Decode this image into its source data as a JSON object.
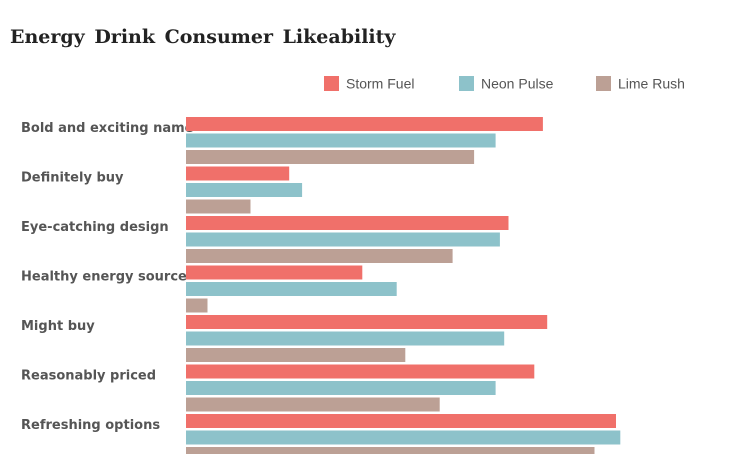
{
  "chart_data": {
    "type": "bar",
    "orientation": "horizontal",
    "title": "Energy Drink Consumer Likeability",
    "xlabel": "",
    "ylabel": "",
    "xlim": [
      0,
      100
    ],
    "grid": false,
    "legend_position": "top-right",
    "categories": [
      "Bold and exciting name",
      "Definitely buy",
      "Eye-catching design",
      "Healthy energy source",
      "Might buy",
      "Reasonably priced",
      "Refreshing options"
    ],
    "series": [
      {
        "name": "Storm Fuel",
        "color": "#f0706a",
        "values": [
          83,
          24,
          75,
          41,
          84,
          81,
          100
        ]
      },
      {
        "name": "Neon Pulse",
        "color": "#8dc2ca",
        "values": [
          72,
          27,
          73,
          49,
          74,
          72,
          101
        ]
      },
      {
        "name": "Lime Rush",
        "color": "#bca095",
        "values": [
          67,
          15,
          62,
          5,
          51,
          59,
          95
        ]
      }
    ]
  }
}
